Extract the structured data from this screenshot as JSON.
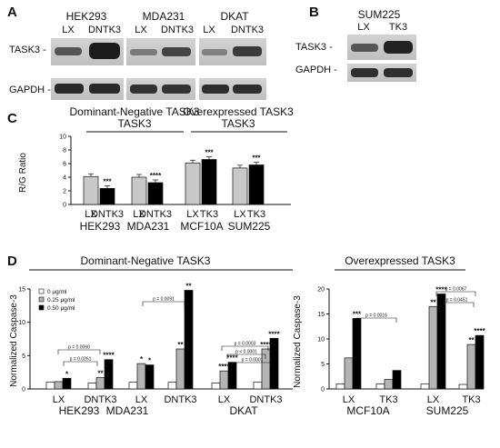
{
  "panel_letters": {
    "a": "A",
    "b": "B",
    "c": "C",
    "d": "D"
  },
  "blot_a": {
    "row_labels": [
      "TASK3 -",
      "GAPDH -"
    ],
    "groups": [
      {
        "name": "HEK293",
        "lanes": [
          "LX",
          "DNTK3"
        ]
      },
      {
        "name": "MDA231",
        "lanes": [
          "LX",
          "DNTK3"
        ]
      },
      {
        "name": "DKAT",
        "lanes": [
          "LX",
          "DNTK3"
        ]
      }
    ]
  },
  "blot_b": {
    "row_labels": [
      "TASK3 -",
      "GAPDH -"
    ],
    "groups": [
      {
        "name": "SUM225",
        "lanes": [
          "LX",
          "TK3"
        ]
      }
    ]
  },
  "chart_data": [
    {
      "id": "C",
      "type": "bar",
      "header_left": "Dominant-Negative TASK3",
      "header_right": "Overexpressed TASK3",
      "ylabel": "R/G Ratio",
      "ylim": [
        0,
        10
      ],
      "yticks": [
        "0",
        "2",
        "4",
        "6",
        "8",
        "10"
      ],
      "groups": [
        "HEK293",
        "MDA231",
        "MCF10A",
        "SUM225"
      ],
      "bars": [
        {
          "label": "LX",
          "value": 4.1,
          "color": "#c8c8c8",
          "sig": ""
        },
        {
          "label": "DNTK3",
          "value": 2.35,
          "color": "#000000",
          "sig": "***"
        },
        {
          "label": "LX",
          "value": 4.0,
          "color": "#c8c8c8",
          "sig": ""
        },
        {
          "label": "DNTK3",
          "value": 3.2,
          "color": "#000000",
          "sig": "****"
        },
        {
          "label": "LX",
          "value": 6.1,
          "color": "#c8c8c8",
          "sig": ""
        },
        {
          "label": "TK3",
          "value": 6.6,
          "color": "#000000",
          "sig": "***"
        },
        {
          "label": "LX",
          "value": 5.35,
          "color": "#c8c8c8",
          "sig": ""
        },
        {
          "label": "TK3",
          "value": 5.8,
          "color": "#000000",
          "sig": "***"
        }
      ]
    },
    {
      "id": "D-left",
      "type": "bar",
      "header": "Dominant-Negative TASK3",
      "ylabel": "Normalized Caspase-3",
      "ylim": [
        0,
        15
      ],
      "yticks": [
        "0",
        "5",
        "10",
        "15"
      ],
      "legend": [
        "0 µg/ml",
        "0.25 µg/ml",
        "0.50 µg/ml"
      ],
      "series_colors": [
        "#ffffff",
        "#b4b4b4",
        "#000000"
      ],
      "groups": [
        "HEK293",
        "MDA231",
        "DKAT"
      ],
      "categories": [
        {
          "label": "LX",
          "values": [
            1.0,
            1.1,
            1.6
          ],
          "sig": [
            "",
            "",
            "*"
          ]
        },
        {
          "label": "DNTK3",
          "values": [
            0.9,
            1.7,
            4.4
          ],
          "sig": [
            "",
            "**",
            "****"
          ]
        },
        {
          "label": "LX",
          "values": [
            1.0,
            3.8,
            3.6
          ],
          "sig": [
            "",
            "*",
            "*"
          ]
        },
        {
          "label": "DNTK3",
          "values": [
            1.0,
            6.0,
            14.8
          ],
          "sig": [
            "",
            "**",
            "**"
          ]
        },
        {
          "label": "LX",
          "values": [
            0.9,
            2.7,
            4.0
          ],
          "sig": [
            "",
            "****",
            "****"
          ]
        },
        {
          "label": "DNTK3",
          "values": [
            1.0,
            6.0,
            7.6
          ],
          "sig": [
            "",
            "****",
            "****"
          ]
        }
      ],
      "pvalues": [
        "p = 0.0060",
        "p = 0.0261",
        "p = 0.0091",
        "p = 0.0003",
        "p < 0.0001",
        "p = 0.0001"
      ]
    },
    {
      "id": "D-right",
      "type": "bar",
      "header": "Overexpressed TASK3",
      "ylabel": "Normalized Caspase-3",
      "ylim": [
        0,
        20
      ],
      "yticks": [
        "0",
        "5",
        "10",
        "15",
        "20"
      ],
      "series_colors": [
        "#ffffff",
        "#b4b4b4",
        "#000000"
      ],
      "groups": [
        "MCF10A",
        "SUM225"
      ],
      "categories": [
        {
          "label": "LX",
          "values": [
            1.0,
            6.2,
            14.1
          ],
          "sig": [
            "",
            "",
            "***"
          ]
        },
        {
          "label": "TK3",
          "values": [
            1.0,
            1.9,
            3.7
          ],
          "sig": [
            "",
            "",
            ""
          ]
        },
        {
          "label": "LX",
          "values": [
            1.0,
            16.5,
            19.0
          ],
          "sig": [
            "",
            "**",
            "****"
          ]
        },
        {
          "label": "TK3",
          "values": [
            0.9,
            8.9,
            10.7
          ],
          "sig": [
            "",
            "**",
            "****"
          ]
        }
      ],
      "pvalues": [
        "p = 0.0016",
        "p = 0.0067",
        "p = 0.0451"
      ]
    }
  ]
}
